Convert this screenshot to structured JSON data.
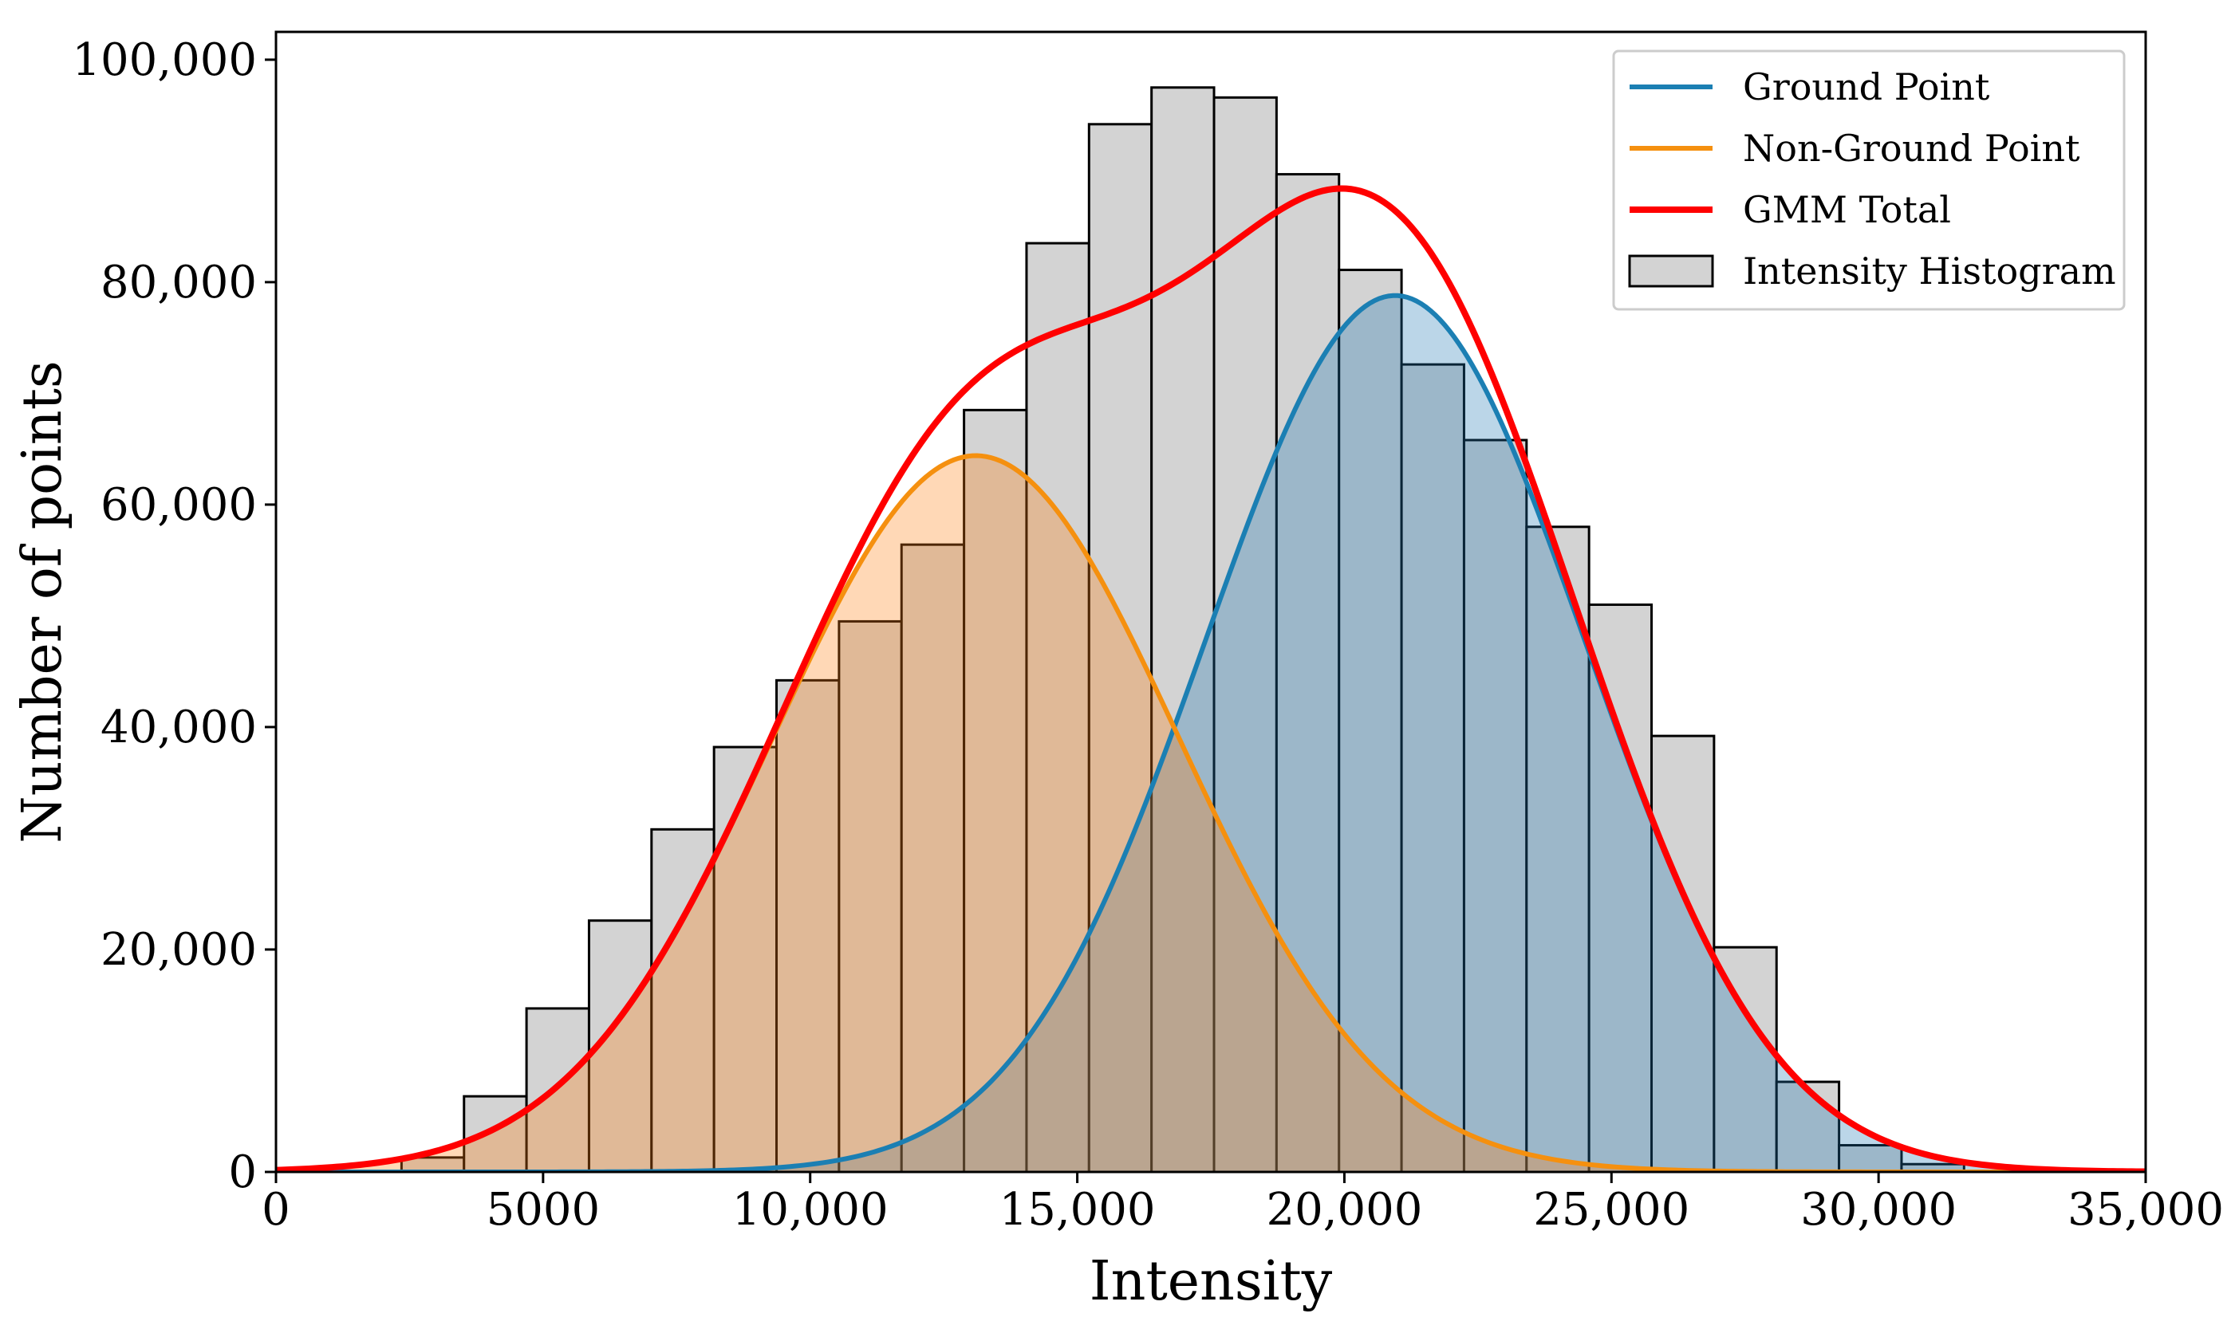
{
  "chart_data": {
    "type": "bar",
    "title": "",
    "xlabel": "Intensity",
    "ylabel": "Number of points",
    "xlim": [
      0,
      35000
    ],
    "ylim": [
      0,
      102500
    ],
    "grid": false,
    "legend_position": "top-right",
    "x_ticks": [
      {
        "value": 0,
        "label": "0"
      },
      {
        "value": 5000,
        "label": "5000"
      },
      {
        "value": 10000,
        "label": "10,000"
      },
      {
        "value": 15000,
        "label": "15,000"
      },
      {
        "value": 20000,
        "label": "20,000"
      },
      {
        "value": 25000,
        "label": "25,000"
      },
      {
        "value": 30000,
        "label": "30,000"
      },
      {
        "value": 35000,
        "label": "35,000"
      }
    ],
    "y_ticks": [
      {
        "value": 0,
        "label": "0"
      },
      {
        "value": 20000,
        "label": "20,000"
      },
      {
        "value": 40000,
        "label": "40,000"
      },
      {
        "value": 60000,
        "label": "60,000"
      },
      {
        "value": 80000,
        "label": "80,000"
      },
      {
        "value": 100000,
        "label": "100,000"
      }
    ],
    "histogram": {
      "name": "Intensity Histogram",
      "bin_start": 2350,
      "bin_width": 1170,
      "counts": [
        1300,
        6800,
        14700,
        22600,
        30800,
        38200,
        44200,
        49500,
        56400,
        68500,
        83500,
        94200,
        97500,
        96600,
        89700,
        81100,
        72600,
        65800,
        58000,
        51000,
        39200,
        20200,
        8100,
        2400,
        700
      ],
      "fill": "#d3d3d3",
      "edge": "#000000"
    },
    "components": [
      {
        "name": "Ground Point",
        "color": "#1f77b4",
        "line_color": "#1b7fb3",
        "mean": 20950,
        "std": 3550,
        "peak": 78800
      },
      {
        "name": "Non-Ground Point",
        "color": "#ff7f0e",
        "line_color": "#f5900f",
        "mean": 13100,
        "std": 3800,
        "peak": 64400
      }
    ],
    "total": {
      "name": "GMM Total",
      "color": "#ff0000"
    }
  }
}
